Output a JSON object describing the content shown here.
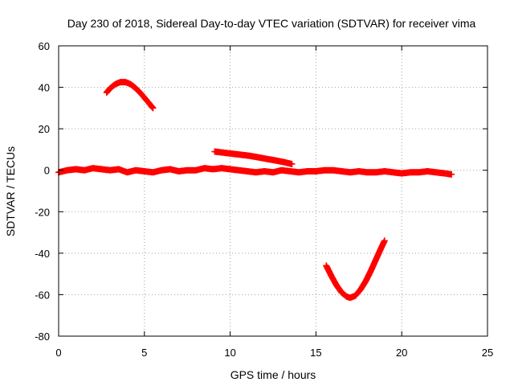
{
  "chart_data": {
    "type": "scatter",
    "title": "Day 230 of 2018, Sidereal Day-to-day VTEC variation (SDTVAR) for receiver vima",
    "xlabel": "GPS time / hours",
    "ylabel": "SDTVAR / TECUs",
    "xlim": [
      0,
      25
    ],
    "ylim": [
      -80,
      60
    ],
    "x_ticks": [
      0,
      5,
      10,
      15,
      20,
      25
    ],
    "y_ticks": [
      -80,
      -60,
      -40,
      -20,
      0,
      20,
      40,
      60
    ],
    "x_tick_labels": [
      "0",
      "5",
      "10",
      "15",
      "20",
      "25"
    ],
    "y_tick_labels": [
      "-80",
      "-60",
      "-40",
      "-20",
      "0",
      "20",
      "40",
      "60"
    ],
    "grid": true,
    "marker": "plus",
    "color": "#ff0000",
    "series": [
      {
        "x": [
          0.0,
          0.5,
          1.0,
          1.5,
          2.0,
          2.5,
          3.0,
          3.5,
          4.0,
          4.5,
          5.0,
          5.5,
          6.0,
          6.5,
          7.0,
          7.5,
          8.0,
          8.5,
          9.0,
          9.5,
          10.0,
          10.5,
          11.0,
          11.5,
          12.0,
          12.5,
          13.0,
          13.5,
          14.0,
          14.5,
          15.0,
          15.5,
          16.0,
          16.5,
          17.0,
          17.5,
          18.0,
          18.5,
          19.0,
          19.5,
          20.0,
          20.5,
          21.0,
          21.5,
          22.0,
          22.5,
          22.9
        ],
        "y": [
          -1,
          0,
          0.5,
          0,
          1,
          0.5,
          0,
          0.5,
          -1,
          0,
          -0.5,
          -1,
          0,
          0.5,
          -0.5,
          0,
          0,
          1,
          0.5,
          1,
          0.5,
          0,
          -0.5,
          -1,
          -0.5,
          -1,
          0,
          -0.5,
          -1,
          -0.5,
          -0.5,
          0,
          0,
          -0.5,
          -1,
          -0.5,
          -1,
          -1,
          -0.5,
          -1,
          -1.5,
          -1,
          -1,
          -0.5,
          -1,
          -1.5,
          -2
        ]
      },
      {
        "x": [
          2.8,
          3.0,
          3.3,
          3.6,
          3.9,
          4.2,
          4.5,
          4.8,
          5.1,
          5.4,
          5.5
        ],
        "y": [
          37.5,
          39.5,
          41.5,
          42.5,
          42.5,
          41.5,
          39.5,
          37,
          34,
          31,
          30
        ]
      },
      {
        "x": [
          9.1,
          9.6,
          10.1,
          10.6,
          11.1,
          11.6,
          12.1,
          12.6,
          13.1,
          13.6
        ],
        "y": [
          9,
          8.5,
          8,
          7.5,
          7,
          6.3,
          5.5,
          4.8,
          4,
          3
        ]
      },
      {
        "x": [
          15.6,
          15.9,
          16.2,
          16.5,
          16.8,
          17.0,
          17.3,
          17.6,
          17.9,
          18.2,
          18.5,
          18.8,
          19.0
        ],
        "y": [
          -46,
          -51,
          -55.5,
          -59,
          -61,
          -61.5,
          -60.5,
          -57.5,
          -53.5,
          -48.5,
          -43,
          -37.5,
          -34
        ]
      }
    ]
  }
}
